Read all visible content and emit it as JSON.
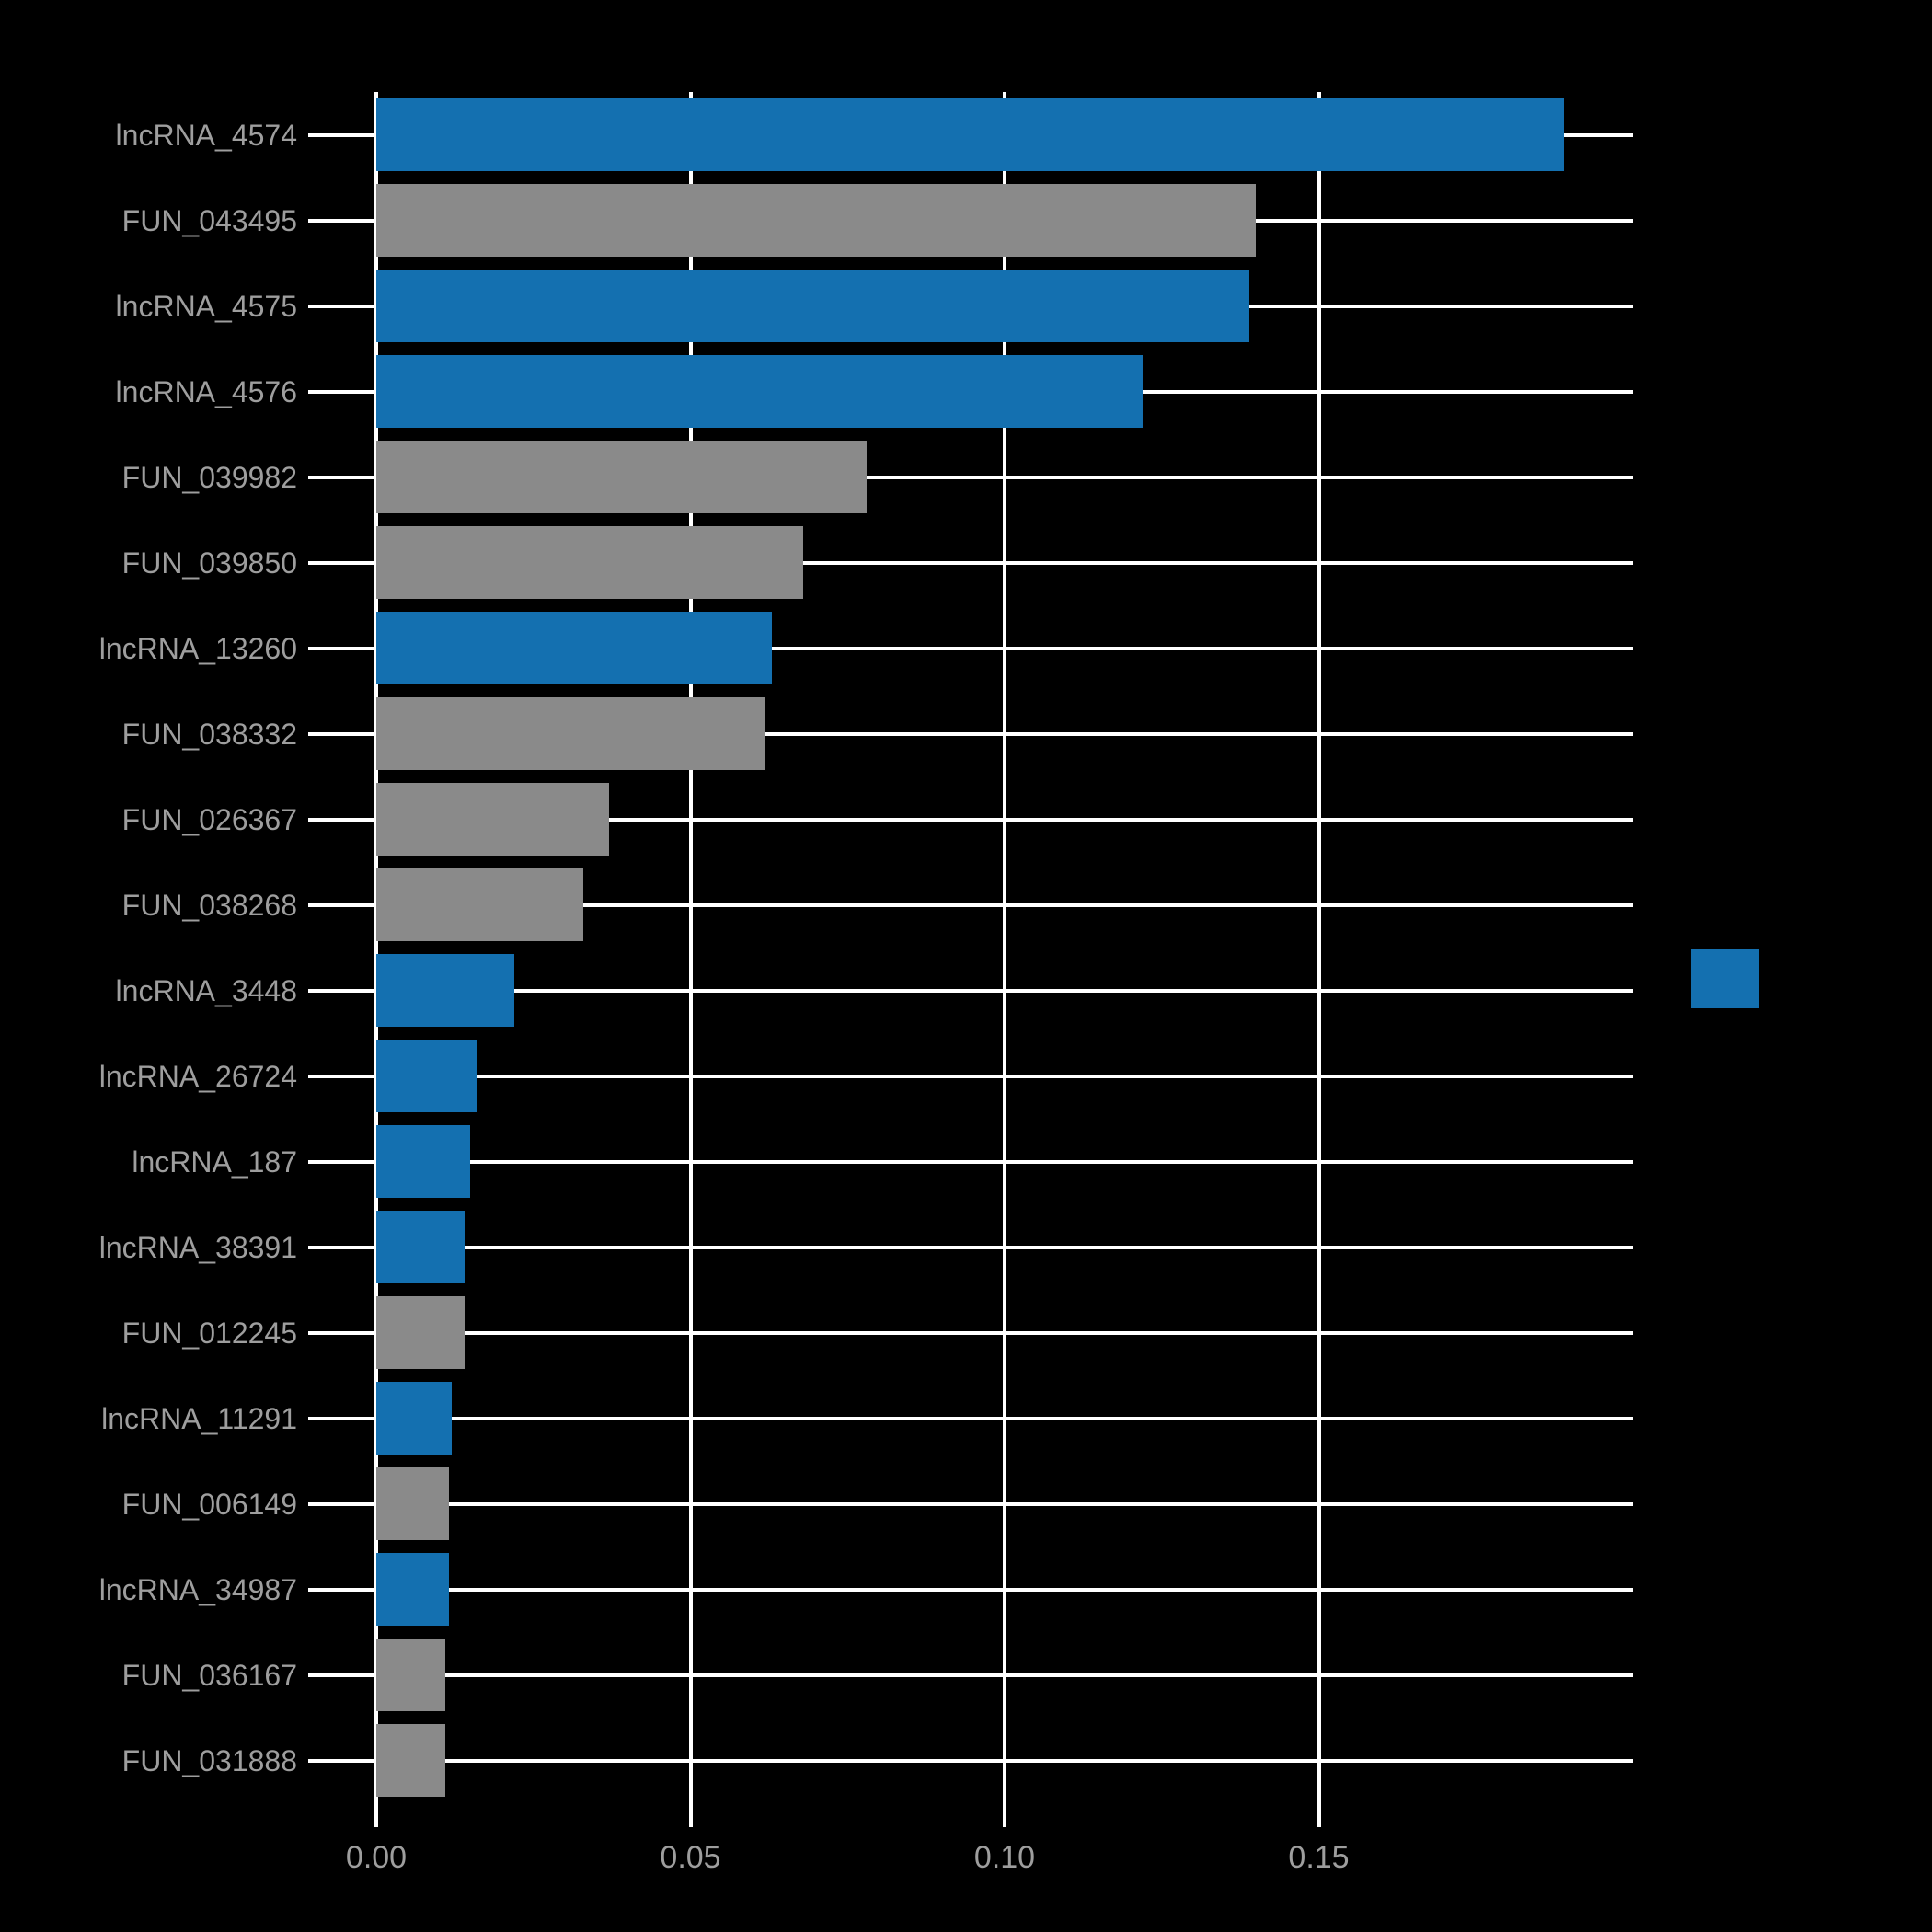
{
  "chart_data": {
    "type": "bar",
    "orientation": "horizontal",
    "title": "",
    "xlabel": "",
    "ylabel": "",
    "xlim": [
      0,
      0.2
    ],
    "grid": true,
    "background": "#000000",
    "grid_color": "#ffffff",
    "text_color": "#9e9e9e",
    "colors": {
      "lncRNA": "#1470b0",
      "FUN": "#8a8a8a"
    },
    "xticks": [
      {
        "value": 0.0,
        "label": "0.00"
      },
      {
        "value": 0.05,
        "label": "0.05"
      },
      {
        "value": 0.1,
        "label": "0.10"
      },
      {
        "value": 0.15,
        "label": "0.15"
      }
    ],
    "categories": [
      {
        "label": "lncRNA_4574",
        "value": 0.189,
        "group": "lncRNA"
      },
      {
        "label": "FUN_043495",
        "value": 0.14,
        "group": "FUN"
      },
      {
        "label": "lncRNA_4575",
        "value": 0.139,
        "group": "lncRNA"
      },
      {
        "label": "lncRNA_4576",
        "value": 0.122,
        "group": "lncRNA"
      },
      {
        "label": "FUN_039982",
        "value": 0.078,
        "group": "FUN"
      },
      {
        "label": "FUN_039850",
        "value": 0.068,
        "group": "FUN"
      },
      {
        "label": "lncRNA_13260",
        "value": 0.063,
        "group": "lncRNA"
      },
      {
        "label": "FUN_038332",
        "value": 0.062,
        "group": "FUN"
      },
      {
        "label": "FUN_026367",
        "value": 0.037,
        "group": "FUN"
      },
      {
        "label": "FUN_038268",
        "value": 0.033,
        "group": "FUN"
      },
      {
        "label": "lncRNA_3448",
        "value": 0.022,
        "group": "lncRNA"
      },
      {
        "label": "lncRNA_26724",
        "value": 0.016,
        "group": "lncRNA"
      },
      {
        "label": "lncRNA_187",
        "value": 0.015,
        "group": "lncRNA"
      },
      {
        "label": "lncRNA_38391",
        "value": 0.014,
        "group": "lncRNA"
      },
      {
        "label": "FUN_012245",
        "value": 0.014,
        "group": "FUN"
      },
      {
        "label": "lncRNA_11291",
        "value": 0.012,
        "group": "lncRNA"
      },
      {
        "label": "FUN_006149",
        "value": 0.0115,
        "group": "FUN"
      },
      {
        "label": "lncRNA_34987",
        "value": 0.0115,
        "group": "lncRNA"
      },
      {
        "label": "FUN_036167",
        "value": 0.011,
        "group": "FUN"
      },
      {
        "label": "FUN_031888",
        "value": 0.011,
        "group": "FUN"
      }
    ],
    "legend": {
      "position": "right",
      "swatch_group": "lncRNA"
    }
  }
}
